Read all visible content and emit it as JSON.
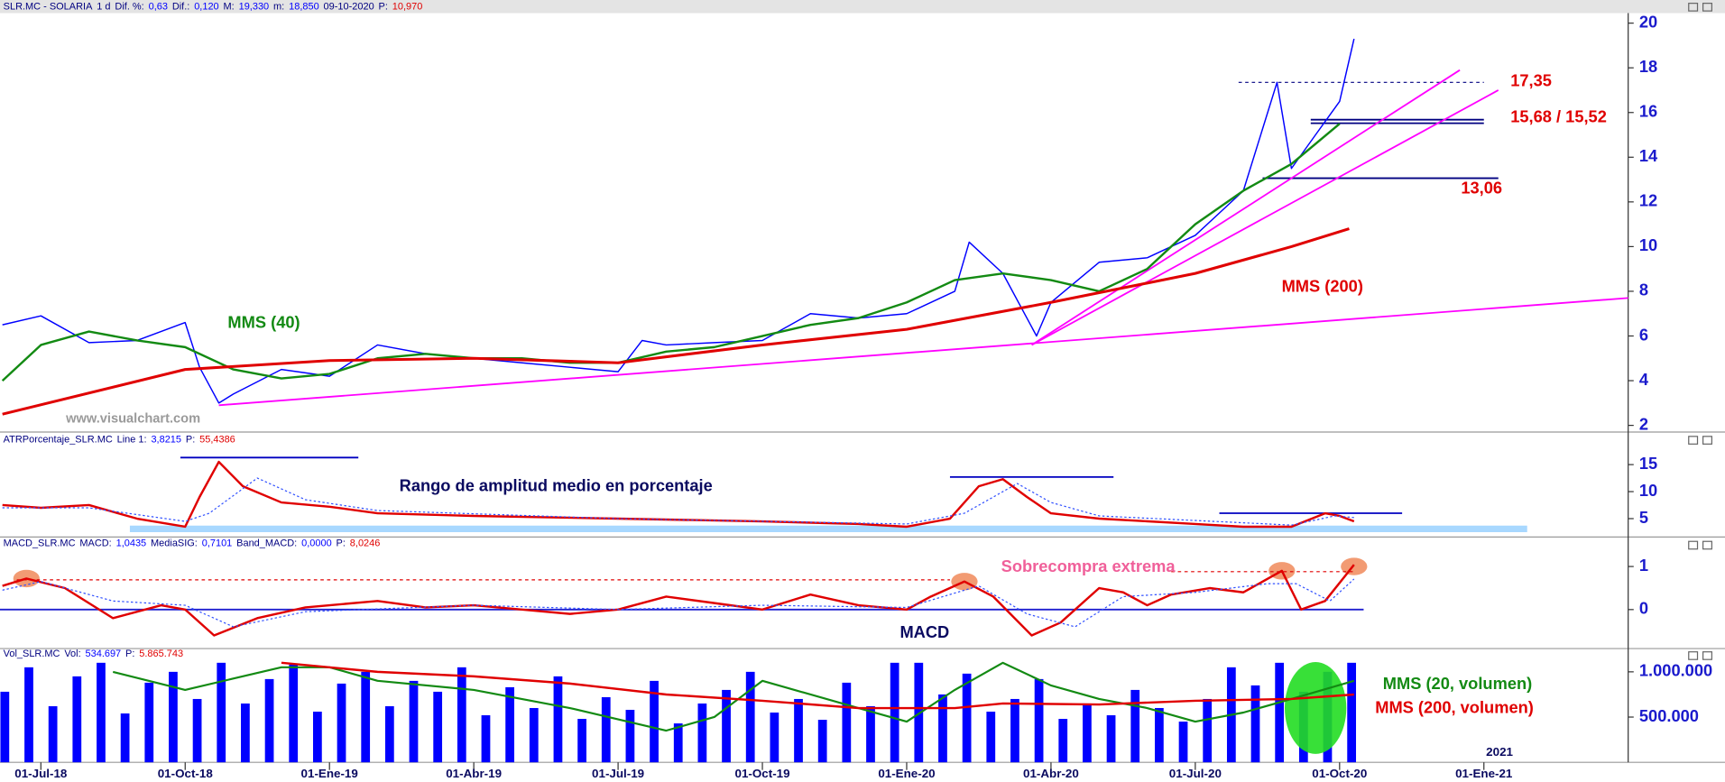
{
  "chart_data": [
    {
      "type": "line",
      "header": [
        {
          "text": "SLR.MC - SOLARIA",
          "color": "#000080"
        },
        {
          "text": "1 d",
          "color": "#000080"
        },
        {
          "text": "Dif. %:",
          "color": "#000080"
        },
        {
          "text": "0,63",
          "color": "#0000ff"
        },
        {
          "text": "Dif.:",
          "color": "#000080"
        },
        {
          "text": "0,120",
          "color": "#0000ff"
        },
        {
          "text": "M:",
          "color": "#000080"
        },
        {
          "text": "19,330",
          "color": "#0000ff"
        },
        {
          "text": "m:",
          "color": "#000080"
        },
        {
          "text": "18,850",
          "color": "#0000ff"
        },
        {
          "text": "09-10-2020",
          "color": "#000080"
        },
        {
          "text": "P:",
          "color": "#000080"
        },
        {
          "text": "10,970",
          "color": "#e00000"
        }
      ],
      "xlim": [
        -0.85,
        33
      ],
      "ylim": [
        1.8,
        20.35
      ],
      "yticks": [
        2,
        4,
        6,
        8,
        10,
        12,
        14,
        16,
        18,
        20
      ],
      "series": [
        {
          "color": "#0000ff",
          "width": 1.2,
          "x": [
            -0.8,
            0,
            1,
            2,
            3,
            3.3,
            3.7,
            4,
            5,
            6,
            7,
            8,
            9,
            10,
            11,
            12,
            12.5,
            13,
            14,
            15,
            16,
            17,
            18,
            19,
            19.3,
            20,
            20.7,
            21,
            22,
            23,
            24,
            25,
            25.7,
            26,
            26.5,
            27,
            27.3
          ],
          "values": [
            6.5,
            6.9,
            5.7,
            5.8,
            6.6,
            4.6,
            3.0,
            3.4,
            4.5,
            4.2,
            5.6,
            5.2,
            5.0,
            4.8,
            4.6,
            4.4,
            5.8,
            5.6,
            5.7,
            5.8,
            7.0,
            6.8,
            7.0,
            8.0,
            10.2,
            8.8,
            6.0,
            7.5,
            9.3,
            9.5,
            10.5,
            12.5,
            17.35,
            13.5,
            15.0,
            16.5,
            19.3
          ]
        },
        {
          "color": "#138a13",
          "width": 2,
          "x": [
            -0.8,
            0,
            1,
            2,
            3,
            4,
            5,
            6,
            7,
            8,
            9,
            10,
            11,
            12,
            13,
            14,
            15,
            16,
            17,
            18,
            19,
            20,
            21,
            22,
            23,
            24,
            25,
            26,
            27
          ],
          "values": [
            4.0,
            5.6,
            6.2,
            5.8,
            5.5,
            4.5,
            4.1,
            4.3,
            5.0,
            5.2,
            5.0,
            5.0,
            4.8,
            4.8,
            5.3,
            5.5,
            6.0,
            6.5,
            6.8,
            7.5,
            8.5,
            8.8,
            8.5,
            8.0,
            9.0,
            11.0,
            12.5,
            13.7,
            15.5
          ]
        },
        {
          "color": "#e00000",
          "width": 2.5,
          "x": [
            -0.8,
            3,
            6,
            9,
            12,
            15,
            18,
            21,
            24,
            26,
            27.2
          ],
          "values": [
            2.5,
            4.5,
            4.9,
            5.0,
            4.8,
            5.6,
            6.3,
            7.5,
            8.8,
            10.0,
            10.8
          ]
        }
      ],
      "trendlines": [
        {
          "color": "#ff00ff",
          "x": [
            3.7,
            33
          ],
          "y": [
            2.9,
            7.7
          ]
        },
        {
          "color": "#ff00ff",
          "x": [
            20.6,
            29.5
          ],
          "y": [
            5.6,
            17.9
          ]
        },
        {
          "color": "#ff00ff",
          "x": [
            20.6,
            30.3
          ],
          "y": [
            5.6,
            17.0
          ]
        }
      ],
      "levels": [
        {
          "value": 17.35,
          "x": [
            24.9,
            30
          ],
          "color": "#000080",
          "dashed": true
        },
        {
          "value": 15.68,
          "x": [
            26.4,
            30
          ],
          "color": "#000080"
        },
        {
          "value": 15.52,
          "x": [
            26.4,
            30
          ],
          "color": "#000080"
        },
        {
          "value": 13.06,
          "x": [
            25.4,
            30.3
          ],
          "color": "#000080"
        }
      ],
      "annotations": [
        {
          "text": "MMS (40)",
          "color": "#138a13"
        },
        {
          "text": "MMS (200)",
          "color": "#e00000"
        },
        {
          "text": "www.visualchart.com",
          "color": "#9a9a9a"
        },
        {
          "text": "17,35",
          "color": "#e00000"
        },
        {
          "text": "15,68 / 15,52",
          "color": "#e00000"
        },
        {
          "text": "13,06",
          "color": "#e00000"
        }
      ]
    },
    {
      "type": "line",
      "header": [
        {
          "text": "ATRPorcentaje_SLR.MC",
          "color": "#000080"
        },
        {
          "text": "Line 1:",
          "color": "#000080"
        },
        {
          "text": "3,8215",
          "color": "#0000ff"
        },
        {
          "text": "P:",
          "color": "#000080"
        },
        {
          "text": "55,4386",
          "color": "#e00000"
        }
      ],
      "xlim": [
        -0.85,
        33
      ],
      "ylim": [
        1.8,
        18.4
      ],
      "yticks": [
        5,
        10,
        15
      ],
      "band": {
        "x": [
          1.85,
          30.9
        ],
        "y": 3.1,
        "color": "#a8d8ff"
      },
      "series": [
        {
          "color": "#e00000",
          "width": 2,
          "x": [
            -0.8,
            0,
            1,
            2,
            3,
            3.3,
            3.7,
            4.2,
            5,
            6,
            7,
            9,
            12,
            15,
            17,
            18,
            18.9,
            19.5,
            20,
            20.5,
            21,
            22,
            24,
            25,
            26,
            26.7,
            27,
            27.3
          ],
          "values": [
            7.5,
            7.0,
            7.5,
            5.0,
            3.5,
            9.0,
            15.5,
            11.0,
            8.0,
            7.2,
            6.0,
            5.5,
            5.0,
            4.5,
            4.0,
            3.5,
            5.0,
            11.0,
            12.3,
            9.0,
            6.0,
            5.0,
            4.0,
            3.5,
            3.5,
            6.0,
            5.5,
            4.5
          ]
        },
        {
          "color": "#3050ff",
          "width": 1,
          "dotted": true,
          "x": [
            -0.8,
            1,
            3,
            3.5,
            4.5,
            5.5,
            7,
            12,
            18,
            19.2,
            20.3,
            21,
            22,
            26,
            26.9,
            27.3
          ],
          "values": [
            7.0,
            7.0,
            4.5,
            6.0,
            12.5,
            8.5,
            6.5,
            5.0,
            4.0,
            6.0,
            11.5,
            8.0,
            5.5,
            3.8,
            5.5,
            5.2
          ]
        }
      ],
      "levels": [
        {
          "value": 16.3,
          "x": [
            2.9,
            6.6
          ],
          "color": "#0000c0"
        },
        {
          "value": 12.7,
          "x": [
            18.9,
            22.3
          ],
          "color": "#0000c0"
        },
        {
          "value": 6.0,
          "x": [
            24.5,
            28.3
          ],
          "color": "#0000c0"
        }
      ],
      "annotations": [
        {
          "text": "Rango de amplitud medio en porcentaje",
          "color": "#0a0a60"
        }
      ]
    },
    {
      "type": "line",
      "header": [
        {
          "text": "MACD_SLR.MC",
          "color": "#000080"
        },
        {
          "text": "MACD:",
          "color": "#000080"
        },
        {
          "text": "1,0435",
          "color": "#0000ff"
        },
        {
          "text": "MediaSIG:",
          "color": "#000080"
        },
        {
          "text": "0,7101",
          "color": "#0000ff"
        },
        {
          "text": "Band_MACD:",
          "color": "#000080"
        },
        {
          "text": "0,0000",
          "color": "#0000ff"
        },
        {
          "text": "P:",
          "color": "#000080"
        },
        {
          "text": "8,0246",
          "color": "#e00000"
        }
      ],
      "xlim": [
        -0.85,
        33
      ],
      "ylim": [
        -0.88,
        1.38
      ],
      "yticks": [
        0,
        1
      ],
      "highlights": [
        {
          "x": -0.3,
          "y": 0.72
        },
        {
          "x": 19.2,
          "y": 0.65
        },
        {
          "x": 25.8,
          "y": 0.9
        },
        {
          "x": 27.3,
          "y": 1.0
        }
      ],
      "levels": [
        {
          "value": 0,
          "x": [
            -0.85,
            27.5
          ],
          "color": "#2020d0"
        },
        {
          "value": 0.69,
          "x": [
            -0.5,
            18.9
          ],
          "color": "#e00000",
          "dashed": true
        },
        {
          "value": 0.88,
          "x": [
            23.5,
            27.3
          ],
          "color": "#e00000",
          "dashed": true
        }
      ],
      "series": [
        {
          "color": "#e00000",
          "width": 2,
          "x": [
            -0.8,
            -0.3,
            0.5,
            1.5,
            2.5,
            3,
            3.6,
            4.5,
            5.5,
            6,
            7,
            8,
            9,
            10,
            11,
            12,
            13,
            14,
            15,
            16,
            17,
            18,
            18.5,
            19.2,
            19.8,
            20.6,
            21.2,
            22,
            22.5,
            23,
            23.5,
            24.3,
            25,
            25.8,
            26.2,
            26.7,
            27.3
          ],
          "values": [
            0.55,
            0.72,
            0.5,
            -0.2,
            0.1,
            0.0,
            -0.6,
            -0.2,
            0.05,
            0.1,
            0.2,
            0.05,
            0.1,
            0.0,
            -0.1,
            0.0,
            0.3,
            0.15,
            0.0,
            0.35,
            0.1,
            0.0,
            0.3,
            0.65,
            0.3,
            -0.6,
            -0.3,
            0.5,
            0.4,
            0.1,
            0.35,
            0.5,
            0.4,
            0.9,
            0.0,
            0.2,
            1.04
          ]
        },
        {
          "color": "#3050ff",
          "width": 1,
          "dotted": true,
          "x": [
            -0.8,
            0,
            1.5,
            3,
            4,
            5.5,
            9,
            12,
            15,
            18,
            19.5,
            20.5,
            21.5,
            22.5,
            24,
            25.5,
            26.1,
            26.8,
            27.3
          ],
          "values": [
            0.45,
            0.65,
            0.2,
            0.1,
            -0.4,
            -0.05,
            0.1,
            0.0,
            0.1,
            0.05,
            0.55,
            -0.1,
            -0.4,
            0.3,
            0.4,
            0.6,
            0.6,
            0.2,
            0.71
          ]
        }
      ],
      "annotations": [
        {
          "text": "Sobrecompra extrema",
          "color": "#f0609a"
        },
        {
          "text": "MACD",
          "color": "#0a0a60"
        }
      ]
    },
    {
      "type": "bar",
      "header": [
        {
          "text": "Vol_SLR.MC",
          "color": "#000080"
        },
        {
          "text": "Vol:",
          "color": "#000080"
        },
        {
          "text": "534.697",
          "color": "#0000ff"
        },
        {
          "text": "P:",
          "color": "#000080"
        },
        {
          "text": "5.865.743",
          "color": "#e00000"
        }
      ],
      "xlim": [
        -0.85,
        33
      ],
      "ylim": [
        0,
        1100000
      ],
      "yticks": [
        {
          "value": 500000,
          "label": "500.000"
        },
        {
          "value": 1000000,
          "label": "1.000.000"
        }
      ],
      "xticks": [
        {
          "value": 0,
          "label": "01-Jul-18"
        },
        {
          "value": 3,
          "label": "01-Oct-18"
        },
        {
          "value": 6,
          "label": "01-Ene-19"
        },
        {
          "value": 9,
          "label": "01-Abr-19"
        },
        {
          "value": 12,
          "label": "01-Jul-19"
        },
        {
          "value": 15,
          "label": "01-Oct-19"
        },
        {
          "value": 18,
          "label": "01-Ene-20"
        },
        {
          "value": 21,
          "label": "01-Abr-20"
        },
        {
          "value": 24,
          "label": "01-Jul-20"
        },
        {
          "value": 27,
          "label": "01-Oct-20"
        },
        {
          "value": 30,
          "label": "01-Ene-21"
        }
      ],
      "year_label": "2021",
      "color": "#0000ff",
      "x": [
        -0.75,
        -0.25,
        0.25,
        0.75,
        1.25,
        1.75,
        2.25,
        2.75,
        3.25,
        3.75,
        4.25,
        4.75,
        5.25,
        5.75,
        6.25,
        6.75,
        7.25,
        7.75,
        8.25,
        8.75,
        9.25,
        9.75,
        10.25,
        10.75,
        11.25,
        11.75,
        12.25,
        12.75,
        13.25,
        13.75,
        14.25,
        14.75,
        15.25,
        15.75,
        16.25,
        16.75,
        17.25,
        17.75,
        18.25,
        18.75,
        19.25,
        19.75,
        20.25,
        20.75,
        21.25,
        21.75,
        22.25,
        22.75,
        23.25,
        23.75,
        24.25,
        24.75,
        25.25,
        25.75,
        26.25,
        26.75,
        27.25
      ],
      "values": [
        780000,
        1050000,
        620000,
        950000,
        1100000,
        540000,
        880000,
        1000000,
        700000,
        1100000,
        650000,
        920000,
        1080000,
        560000,
        870000,
        1000000,
        620000,
        900000,
        780000,
        1050000,
        520000,
        830000,
        600000,
        950000,
        480000,
        720000,
        580000,
        900000,
        430000,
        650000,
        800000,
        1000000,
        550000,
        700000,
        470000,
        880000,
        620000,
        1100000,
        1100000,
        750000,
        980000,
        560000,
        700000,
        920000,
        480000,
        650000,
        520000,
        800000,
        600000,
        450000,
        700000,
        1050000,
        850000,
        1100000,
        780000,
        1000000,
        1100000
      ],
      "highlights": [
        {
          "x": 26.5,
          "y": 600000,
          "color": "#22dd22"
        }
      ],
      "series": [
        {
          "color": "#138a13",
          "width": 1.8,
          "x": [
            1.5,
            3,
            5,
            6,
            7,
            9,
            11,
            13,
            14,
            15,
            17,
            18,
            19,
            20,
            21,
            22,
            23,
            24,
            25,
            26,
            27.3
          ],
          "values": [
            1000000,
            800000,
            1050000,
            1050000,
            900000,
            800000,
            600000,
            350000,
            500000,
            900000,
            600000,
            450000,
            800000,
            1100000,
            850000,
            700000,
            600000,
            450000,
            550000,
            700000,
            900000
          ]
        },
        {
          "color": "#e00000",
          "width": 2,
          "x": [
            5,
            7,
            9,
            11,
            13,
            15,
            17,
            19,
            20,
            22,
            24,
            26,
            27.3
          ],
          "values": [
            1100000,
            1000000,
            950000,
            870000,
            750000,
            680000,
            600000,
            600000,
            650000,
            640000,
            680000,
            700000,
            750000
          ]
        }
      ],
      "annotations": [
        {
          "text": "MMS (20, volumen)",
          "color": "#138a13"
        },
        {
          "text": "MMS (200, volumen)",
          "color": "#e00000"
        }
      ]
    }
  ]
}
